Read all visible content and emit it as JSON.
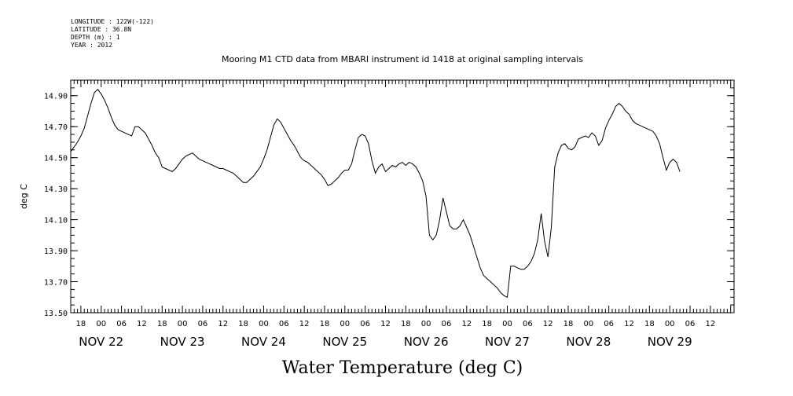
{
  "header": {
    "longitude": "LONGITUDE : 122W(-122)",
    "latitude": "LATITUDE : 36.8N",
    "depth": "DEPTH (m) : 1",
    "year": "YEAR : 2012",
    "title": "Mooring M1 CTD data from MBARI instrument id 1418 at original sampling intervals"
  },
  "chart_data": {
    "type": "line",
    "title": "Mooring M1 CTD data from MBARI instrument id 1418 at original sampling intervals",
    "xlabel": "Water Temperature (deg C)",
    "ylabel": "deg C",
    "ylim": [
      13.5,
      15.0
    ],
    "xlim": [
      "2012-11-21T15:00",
      "2012-11-29T19:00"
    ],
    "y_ticks": [
      "13.50",
      "13.70",
      "13.90",
      "14.10",
      "14.30",
      "14.50",
      "14.70",
      "14.90"
    ],
    "x_hour_ticks": [
      {
        "t": "2012-11-21T18:00",
        "label": "18"
      },
      {
        "t": "2012-11-22T00:00",
        "label": "00"
      },
      {
        "t": "2012-11-22T06:00",
        "label": "06"
      },
      {
        "t": "2012-11-22T12:00",
        "label": "12"
      },
      {
        "t": "2012-11-22T18:00",
        "label": "18"
      },
      {
        "t": "2012-11-23T00:00",
        "label": "00"
      },
      {
        "t": "2012-11-23T06:00",
        "label": "06"
      },
      {
        "t": "2012-11-23T12:00",
        "label": "12"
      },
      {
        "t": "2012-11-23T18:00",
        "label": "18"
      },
      {
        "t": "2012-11-24T00:00",
        "label": "00"
      },
      {
        "t": "2012-11-24T06:00",
        "label": "06"
      },
      {
        "t": "2012-11-24T12:00",
        "label": "12"
      },
      {
        "t": "2012-11-24T18:00",
        "label": "18"
      },
      {
        "t": "2012-11-25T00:00",
        "label": "00"
      },
      {
        "t": "2012-11-25T06:00",
        "label": "06"
      },
      {
        "t": "2012-11-25T12:00",
        "label": "12"
      },
      {
        "t": "2012-11-25T18:00",
        "label": "18"
      },
      {
        "t": "2012-11-26T00:00",
        "label": "00"
      },
      {
        "t": "2012-11-26T06:00",
        "label": "06"
      },
      {
        "t": "2012-11-26T12:00",
        "label": "12"
      },
      {
        "t": "2012-11-26T18:00",
        "label": "18"
      },
      {
        "t": "2012-11-27T00:00",
        "label": "00"
      },
      {
        "t": "2012-11-27T06:00",
        "label": "06"
      },
      {
        "t": "2012-11-27T12:00",
        "label": "12"
      },
      {
        "t": "2012-11-27T18:00",
        "label": "18"
      },
      {
        "t": "2012-11-28T00:00",
        "label": "00"
      },
      {
        "t": "2012-11-28T06:00",
        "label": "06"
      },
      {
        "t": "2012-11-28T12:00",
        "label": "12"
      },
      {
        "t": "2012-11-28T18:00",
        "label": "18"
      },
      {
        "t": "2012-11-29T00:00",
        "label": "00"
      },
      {
        "t": "2012-11-29T06:00",
        "label": "06"
      },
      {
        "t": "2012-11-29T12:00",
        "label": "12"
      }
    ],
    "x_day_labels": [
      {
        "t": "2012-11-22T00:00",
        "label": "NOV 22"
      },
      {
        "t": "2012-11-23T00:00",
        "label": "NOV 23"
      },
      {
        "t": "2012-11-24T00:00",
        "label": "NOV 24"
      },
      {
        "t": "2012-11-25T00:00",
        "label": "NOV 25"
      },
      {
        "t": "2012-11-26T00:00",
        "label": "NOV 26"
      },
      {
        "t": "2012-11-27T00:00",
        "label": "NOV 27"
      },
      {
        "t": "2012-11-28T00:00",
        "label": "NOV 28"
      },
      {
        "t": "2012-11-29T00:00",
        "label": "NOV 29"
      }
    ],
    "series": [
      {
        "color": "#000000",
        "points": [
          [
            "2012-11-21T15:00",
            14.54
          ],
          [
            "2012-11-21T16:00",
            14.57
          ],
          [
            "2012-11-21T17:00",
            14.6
          ],
          [
            "2012-11-21T18:00",
            14.64
          ],
          [
            "2012-11-21T19:00",
            14.69
          ],
          [
            "2012-11-21T20:00",
            14.77
          ],
          [
            "2012-11-21T21:00",
            14.85
          ],
          [
            "2012-11-21T22:00",
            14.92
          ],
          [
            "2012-11-21T23:00",
            14.94
          ],
          [
            "2012-11-22T00:00",
            14.91
          ],
          [
            "2012-11-22T01:00",
            14.87
          ],
          [
            "2012-11-22T02:00",
            14.82
          ],
          [
            "2012-11-22T03:00",
            14.76
          ],
          [
            "2012-11-22T04:00",
            14.71
          ],
          [
            "2012-11-22T05:00",
            14.68
          ],
          [
            "2012-11-22T06:00",
            14.67
          ],
          [
            "2012-11-22T07:00",
            14.66
          ],
          [
            "2012-11-22T08:00",
            14.65
          ],
          [
            "2012-11-22T09:00",
            14.64
          ],
          [
            "2012-11-22T10:00",
            14.7
          ],
          [
            "2012-11-22T11:00",
            14.7
          ],
          [
            "2012-11-22T12:00",
            14.68
          ],
          [
            "2012-11-22T13:00",
            14.66
          ],
          [
            "2012-11-22T14:00",
            14.62
          ],
          [
            "2012-11-22T15:00",
            14.58
          ],
          [
            "2012-11-22T16:00",
            14.53
          ],
          [
            "2012-11-22T17:00",
            14.5
          ],
          [
            "2012-11-22T18:00",
            14.44
          ],
          [
            "2012-11-22T19:00",
            14.43
          ],
          [
            "2012-11-22T20:00",
            14.42
          ],
          [
            "2012-11-22T21:00",
            14.41
          ],
          [
            "2012-11-22T22:00",
            14.43
          ],
          [
            "2012-11-22T23:00",
            14.46
          ],
          [
            "2012-11-23T00:00",
            14.49
          ],
          [
            "2012-11-23T01:00",
            14.51
          ],
          [
            "2012-11-23T02:00",
            14.52
          ],
          [
            "2012-11-23T03:00",
            14.53
          ],
          [
            "2012-11-23T04:00",
            14.51
          ],
          [
            "2012-11-23T05:00",
            14.49
          ],
          [
            "2012-11-23T06:00",
            14.48
          ],
          [
            "2012-11-23T07:00",
            14.47
          ],
          [
            "2012-11-23T08:00",
            14.46
          ],
          [
            "2012-11-23T09:00",
            14.45
          ],
          [
            "2012-11-23T10:00",
            14.44
          ],
          [
            "2012-11-23T11:00",
            14.43
          ],
          [
            "2012-11-23T12:00",
            14.43
          ],
          [
            "2012-11-23T13:00",
            14.42
          ],
          [
            "2012-11-23T14:00",
            14.41
          ],
          [
            "2012-11-23T15:00",
            14.4
          ],
          [
            "2012-11-23T16:00",
            14.38
          ],
          [
            "2012-11-23T17:00",
            14.36
          ],
          [
            "2012-11-23T18:00",
            14.34
          ],
          [
            "2012-11-23T19:00",
            14.34
          ],
          [
            "2012-11-23T20:00",
            14.36
          ],
          [
            "2012-11-23T21:00",
            14.38
          ],
          [
            "2012-11-23T22:00",
            14.41
          ],
          [
            "2012-11-23T23:00",
            14.44
          ],
          [
            "2012-11-24T00:00",
            14.49
          ],
          [
            "2012-11-24T01:00",
            14.55
          ],
          [
            "2012-11-24T02:00",
            14.63
          ],
          [
            "2012-11-24T03:00",
            14.71
          ],
          [
            "2012-11-24T04:00",
            14.75
          ],
          [
            "2012-11-24T05:00",
            14.73
          ],
          [
            "2012-11-24T06:00",
            14.69
          ],
          [
            "2012-11-24T07:00",
            14.65
          ],
          [
            "2012-11-24T08:00",
            14.61
          ],
          [
            "2012-11-24T09:00",
            14.58
          ],
          [
            "2012-11-24T10:00",
            14.54
          ],
          [
            "2012-11-24T11:00",
            14.5
          ],
          [
            "2012-11-24T12:00",
            14.48
          ],
          [
            "2012-11-24T13:00",
            14.47
          ],
          [
            "2012-11-24T14:00",
            14.45
          ],
          [
            "2012-11-24T15:00",
            14.43
          ],
          [
            "2012-11-24T16:00",
            14.41
          ],
          [
            "2012-11-24T17:00",
            14.39
          ],
          [
            "2012-11-24T18:00",
            14.36
          ],
          [
            "2012-11-24T19:00",
            14.32
          ],
          [
            "2012-11-24T20:00",
            14.33
          ],
          [
            "2012-11-24T21:00",
            14.35
          ],
          [
            "2012-11-24T22:00",
            14.37
          ],
          [
            "2012-11-24T23:00",
            14.4
          ],
          [
            "2012-11-25T00:00",
            14.42
          ],
          [
            "2012-11-25T01:00",
            14.42
          ],
          [
            "2012-11-25T02:00",
            14.46
          ],
          [
            "2012-11-25T03:00",
            14.55
          ],
          [
            "2012-11-25T04:00",
            14.63
          ],
          [
            "2012-11-25T05:00",
            14.65
          ],
          [
            "2012-11-25T06:00",
            14.64
          ],
          [
            "2012-11-25T07:00",
            14.59
          ],
          [
            "2012-11-25T08:00",
            14.48
          ],
          [
            "2012-11-25T09:00",
            14.4
          ],
          [
            "2012-11-25T10:00",
            14.44
          ],
          [
            "2012-11-25T11:00",
            14.46
          ],
          [
            "2012-11-25T12:00",
            14.41
          ],
          [
            "2012-11-25T13:00",
            14.43
          ],
          [
            "2012-11-25T14:00",
            14.45
          ],
          [
            "2012-11-25T15:00",
            14.44
          ],
          [
            "2012-11-25T16:00",
            14.46
          ],
          [
            "2012-11-25T17:00",
            14.47
          ],
          [
            "2012-11-25T18:00",
            14.45
          ],
          [
            "2012-11-25T19:00",
            14.47
          ],
          [
            "2012-11-25T20:00",
            14.46
          ],
          [
            "2012-11-25T21:00",
            14.44
          ],
          [
            "2012-11-25T22:00",
            14.4
          ],
          [
            "2012-11-25T23:00",
            14.35
          ],
          [
            "2012-11-26T00:00",
            14.25
          ],
          [
            "2012-11-26T01:00",
            14.0
          ],
          [
            "2012-11-26T02:00",
            13.97
          ],
          [
            "2012-11-26T03:00",
            14.0
          ],
          [
            "2012-11-26T04:00",
            14.1
          ],
          [
            "2012-11-26T05:00",
            14.24
          ],
          [
            "2012-11-26T06:00",
            14.15
          ],
          [
            "2012-11-26T07:00",
            14.06
          ],
          [
            "2012-11-26T08:00",
            14.04
          ],
          [
            "2012-11-26T09:00",
            14.04
          ],
          [
            "2012-11-26T10:00",
            14.06
          ],
          [
            "2012-11-26T11:00",
            14.1
          ],
          [
            "2012-11-26T12:00",
            14.05
          ],
          [
            "2012-11-26T13:00",
            14.0
          ],
          [
            "2012-11-26T14:00",
            13.93
          ],
          [
            "2012-11-26T15:00",
            13.86
          ],
          [
            "2012-11-26T16:00",
            13.79
          ],
          [
            "2012-11-26T17:00",
            13.74
          ],
          [
            "2012-11-26T18:00",
            13.72
          ],
          [
            "2012-11-26T19:00",
            13.7
          ],
          [
            "2012-11-26T20:00",
            13.68
          ],
          [
            "2012-11-26T21:00",
            13.66
          ],
          [
            "2012-11-26T22:00",
            13.63
          ],
          [
            "2012-11-26T23:00",
            13.61
          ],
          [
            "2012-11-27T00:00",
            13.6
          ],
          [
            "2012-11-27T01:00",
            13.8
          ],
          [
            "2012-11-27T02:00",
            13.8
          ],
          [
            "2012-11-27T03:00",
            13.79
          ],
          [
            "2012-11-27T04:00",
            13.78
          ],
          [
            "2012-11-27T05:00",
            13.78
          ],
          [
            "2012-11-27T06:00",
            13.8
          ],
          [
            "2012-11-27T07:00",
            13.83
          ],
          [
            "2012-11-27T08:00",
            13.88
          ],
          [
            "2012-11-27T09:00",
            13.97
          ],
          [
            "2012-11-27T10:00",
            14.14
          ],
          [
            "2012-11-27T11:00",
            13.96
          ],
          [
            "2012-11-27T12:00",
            13.86
          ],
          [
            "2012-11-27T13:00",
            14.05
          ],
          [
            "2012-11-27T14:00",
            14.44
          ],
          [
            "2012-11-27T15:00",
            14.53
          ],
          [
            "2012-11-27T16:00",
            14.58
          ],
          [
            "2012-11-27T17:00",
            14.59
          ],
          [
            "2012-11-27T18:00",
            14.56
          ],
          [
            "2012-11-27T19:00",
            14.55
          ],
          [
            "2012-11-27T20:00",
            14.57
          ],
          [
            "2012-11-27T21:00",
            14.62
          ],
          [
            "2012-11-27T22:00",
            14.63
          ],
          [
            "2012-11-27T23:00",
            14.64
          ],
          [
            "2012-11-28T00:00",
            14.63
          ],
          [
            "2012-11-28T01:00",
            14.66
          ],
          [
            "2012-11-28T02:00",
            14.64
          ],
          [
            "2012-11-28T03:00",
            14.58
          ],
          [
            "2012-11-28T04:00",
            14.61
          ],
          [
            "2012-11-28T05:00",
            14.69
          ],
          [
            "2012-11-28T06:00",
            14.74
          ],
          [
            "2012-11-28T07:00",
            14.78
          ],
          [
            "2012-11-28T08:00",
            14.83
          ],
          [
            "2012-11-28T09:00",
            14.85
          ],
          [
            "2012-11-28T10:00",
            14.83
          ],
          [
            "2012-11-28T11:00",
            14.8
          ],
          [
            "2012-11-28T12:00",
            14.78
          ],
          [
            "2012-11-28T13:00",
            14.74
          ],
          [
            "2012-11-28T14:00",
            14.72
          ],
          [
            "2012-11-28T15:00",
            14.71
          ],
          [
            "2012-11-28T16:00",
            14.7
          ],
          [
            "2012-11-28T17:00",
            14.69
          ],
          [
            "2012-11-28T18:00",
            14.68
          ],
          [
            "2012-11-28T19:00",
            14.67
          ],
          [
            "2012-11-28T20:00",
            14.64
          ],
          [
            "2012-11-28T21:00",
            14.59
          ],
          [
            "2012-11-28T22:00",
            14.5
          ],
          [
            "2012-11-28T23:00",
            14.42
          ],
          [
            "2012-11-29T00:00",
            14.47
          ],
          [
            "2012-11-29T01:00",
            14.49
          ],
          [
            "2012-11-29T02:00",
            14.47
          ],
          [
            "2012-11-29T03:00",
            14.41
          ]
        ]
      }
    ]
  }
}
